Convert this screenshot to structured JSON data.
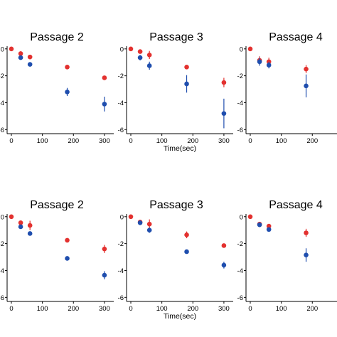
{
  "colors": {
    "red_series": "#e3312f",
    "blue_series": "#1f4eae",
    "axis": "#000000"
  },
  "xlabel": "Time(sec)",
  "chart_data": [
    {
      "type": "scatter",
      "title": "Passage 2",
      "xticks": [
        0,
        100,
        200,
        300
      ],
      "yticks": [
        "0",
        "-2",
        "-4",
        "-6"
      ],
      "ylim": [
        -6.3,
        0.2
      ],
      "series": [
        {
          "color_key": "red_series",
          "points": [
            {
              "x": 0,
              "y": 0,
              "err": 0.08
            },
            {
              "x": 30,
              "y": -0.35,
              "err": 0.18
            },
            {
              "x": 60,
              "y": -0.6,
              "err": 0.12
            },
            {
              "x": 180,
              "y": -1.35,
              "err": 0.12
            },
            {
              "x": 300,
              "y": -2.15,
              "err": 0.1
            }
          ]
        },
        {
          "color_key": "blue_series",
          "points": [
            {
              "x": 30,
              "y": -0.65,
              "err": 0.1
            },
            {
              "x": 60,
              "y": -1.15,
              "err": 0.1
            },
            {
              "x": 180,
              "y": -3.2,
              "err": 0.3
            },
            {
              "x": 300,
              "y": -4.1,
              "err": 0.55
            }
          ]
        }
      ]
    },
    {
      "type": "scatter",
      "title": "Passage 3",
      "xticks": [
        0,
        100,
        200,
        300
      ],
      "yticks": [
        "0",
        "-2",
        "-4",
        "-6"
      ],
      "ylim": [
        -6.3,
        0.2
      ],
      "series": [
        {
          "color_key": "red_series",
          "points": [
            {
              "x": 0,
              "y": 0,
              "err": 0.08
            },
            {
              "x": 30,
              "y": -0.2,
              "err": 0.12
            },
            {
              "x": 60,
              "y": -0.45,
              "err": 0.3
            },
            {
              "x": 180,
              "y": -1.35,
              "err": 0.15
            },
            {
              "x": 300,
              "y": -2.5,
              "err": 0.35
            }
          ]
        },
        {
          "color_key": "blue_series",
          "points": [
            {
              "x": 30,
              "y": -0.65,
              "err": 0.2
            },
            {
              "x": 60,
              "y": -1.25,
              "err": 0.3
            },
            {
              "x": 180,
              "y": -2.6,
              "err": 0.65
            },
            {
              "x": 300,
              "y": -4.8,
              "err": 1.1
            }
          ]
        }
      ]
    },
    {
      "type": "scatter",
      "title": "Passage 4",
      "xticks": [
        0,
        100,
        200
      ],
      "yticks": [
        "0",
        "-2",
        "-4",
        "-6"
      ],
      "ylim": [
        -6.3,
        0.2
      ],
      "series": [
        {
          "color_key": "red_series",
          "points": [
            {
              "x": 0,
              "y": 0,
              "err": 0.08
            },
            {
              "x": 30,
              "y": -0.85,
              "err": 0.3
            },
            {
              "x": 60,
              "y": -0.95,
              "err": 0.3
            },
            {
              "x": 180,
              "y": -1.5,
              "err": 0.3
            }
          ]
        },
        {
          "color_key": "blue_series",
          "points": [
            {
              "x": 30,
              "y": -0.95,
              "err": 0.3
            },
            {
              "x": 60,
              "y": -1.2,
              "err": 0.25
            },
            {
              "x": 180,
              "y": -2.75,
              "err": 0.85
            }
          ]
        }
      ]
    },
    {
      "type": "scatter",
      "title": "Passage 2",
      "xticks": [
        0,
        100,
        200,
        300
      ],
      "yticks": [
        "0",
        "-2",
        "-4",
        "-6"
      ],
      "ylim": [
        -6.3,
        0.2
      ],
      "series": [
        {
          "color_key": "red_series",
          "points": [
            {
              "x": 0,
              "y": 0,
              "err": 0.08
            },
            {
              "x": 30,
              "y": -0.45,
              "err": 0.15
            },
            {
              "x": 60,
              "y": -0.65,
              "err": 0.35
            },
            {
              "x": 180,
              "y": -1.75,
              "err": 0.1
            },
            {
              "x": 300,
              "y": -2.4,
              "err": 0.3
            }
          ]
        },
        {
          "color_key": "blue_series",
          "points": [
            {
              "x": 30,
              "y": -0.75,
              "err": 0.12
            },
            {
              "x": 60,
              "y": -1.25,
              "err": 0.15
            },
            {
              "x": 180,
              "y": -3.1,
              "err": 0.12
            },
            {
              "x": 300,
              "y": -4.35,
              "err": 0.3
            }
          ]
        }
      ]
    },
    {
      "type": "scatter",
      "title": "Passage 3",
      "xticks": [
        0,
        100,
        200,
        300
      ],
      "yticks": [
        "0",
        "-2",
        "-4",
        "-6"
      ],
      "ylim": [
        -6.3,
        0.2
      ],
      "series": [
        {
          "color_key": "red_series",
          "points": [
            {
              "x": 0,
              "y": 0,
              "err": 0.08
            },
            {
              "x": 30,
              "y": -0.4,
              "err": 0.12
            },
            {
              "x": 60,
              "y": -0.55,
              "err": 0.35
            },
            {
              "x": 180,
              "y": -1.35,
              "err": 0.25
            },
            {
              "x": 300,
              "y": -2.15,
              "err": 0.1
            }
          ]
        },
        {
          "color_key": "blue_series",
          "points": [
            {
              "x": 30,
              "y": -0.45,
              "err": 0.1
            },
            {
              "x": 60,
              "y": -1.0,
              "err": 0.2
            },
            {
              "x": 180,
              "y": -2.6,
              "err": 0.1
            },
            {
              "x": 300,
              "y": -3.6,
              "err": 0.25
            }
          ]
        }
      ]
    },
    {
      "type": "scatter",
      "title": "Passage 4",
      "xticks": [
        0,
        100,
        200
      ],
      "yticks": [
        "0",
        "-2",
        "-4",
        "-6"
      ],
      "ylim": [
        -6.3,
        0.2
      ],
      "series": [
        {
          "color_key": "red_series",
          "points": [
            {
              "x": 0,
              "y": 0,
              "err": 0.08
            },
            {
              "x": 30,
              "y": -0.55,
              "err": 0.1
            },
            {
              "x": 60,
              "y": -0.7,
              "err": 0.15
            },
            {
              "x": 180,
              "y": -1.2,
              "err": 0.3
            }
          ]
        },
        {
          "color_key": "blue_series",
          "points": [
            {
              "x": 30,
              "y": -0.6,
              "err": 0.1
            },
            {
              "x": 60,
              "y": -0.95,
              "err": 0.1
            },
            {
              "x": 180,
              "y": -2.85,
              "err": 0.5
            }
          ]
        }
      ]
    }
  ]
}
